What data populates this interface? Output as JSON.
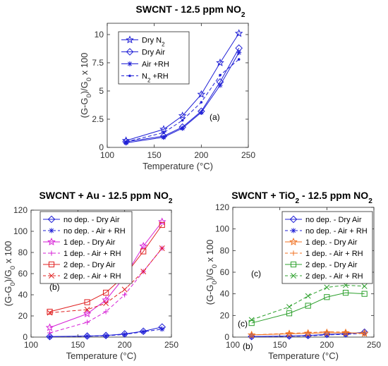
{
  "chart_data": [
    {
      "id": "a",
      "type": "line",
      "title": "SWCNT - 12.5 ppm NO",
      "title_sub": "2",
      "xlabel": "Temperature (°C)",
      "ylabel_parts": [
        "(G-G",
        "0",
        ")/G",
        "0",
        " x 100"
      ],
      "xlim": [
        100,
        250
      ],
      "ylim": [
        0,
        11
      ],
      "xticks": [
        100,
        150,
        200,
        250
      ],
      "yticks": [
        0,
        2.5,
        5,
        7.5,
        10
      ],
      "ytick_labels": [
        "0",
        "2.5",
        "5",
        "7.5",
        "10"
      ],
      "legend_position": "top-left",
      "annotations": [
        "(a)"
      ],
      "x": [
        120,
        160,
        180,
        200,
        220,
        240
      ],
      "series": [
        {
          "name": "Dry N",
          "name_sub": "2",
          "name_suffix": "",
          "color": "#1f1fd6",
          "marker": "star",
          "dash": "solid",
          "values": [
            0.6,
            1.6,
            2.8,
            4.7,
            7.5,
            10.1
          ]
        },
        {
          "name": "Dry Air",
          "color": "#1f1fd6",
          "marker": "diamond",
          "dash": "solid",
          "values": [
            0.5,
            1.0,
            1.8,
            3.2,
            5.8,
            8.8
          ]
        },
        {
          "name": "Air +RH",
          "color": "#1f1fd6",
          "marker": "asterisk",
          "dash": "solid",
          "values": [
            0.4,
            0.9,
            1.7,
            3.1,
            5.5,
            8.4
          ]
        },
        {
          "name": "N",
          "name_sub": "2",
          "name_suffix": " +RH",
          "color": "#1f1fd6",
          "marker": "dot",
          "dash": "dashed",
          "values": [
            0.5,
            1.3,
            2.4,
            4.0,
            6.4,
            7.8
          ]
        }
      ]
    },
    {
      "id": "b",
      "type": "line",
      "title": "SWCNT + Au - 12.5 ppm NO",
      "title_sub": "2",
      "xlabel": "Temperature (°C)",
      "ylabel_parts": [
        "(G-G",
        "0",
        ")/G",
        "0",
        " x 100"
      ],
      "xlim": [
        100,
        250
      ],
      "ylim": [
        0,
        120
      ],
      "xticks": [
        100,
        150,
        200,
        250
      ],
      "yticks": [
        0,
        20,
        40,
        60,
        80,
        100,
        120
      ],
      "ytick_labels": [
        "0",
        "20",
        "40",
        "60",
        "80",
        "100",
        "120"
      ],
      "legend_position": "top-left",
      "annotations": [
        "(b)"
      ],
      "x": [
        120,
        160,
        180,
        200,
        220,
        240
      ],
      "series": [
        {
          "name": "no dep. - Dry Air",
          "color": "#1f1fd6",
          "marker": "diamond",
          "dash": "solid",
          "values": [
            0.5,
            1.0,
            1.5,
            3.0,
            5.5,
            9.5
          ]
        },
        {
          "name": "no dep. - Air + RH",
          "color": "#1f1fd6",
          "marker": "asterisk",
          "dash": "dashed",
          "values": [
            0.3,
            0.8,
            1.2,
            2.5,
            5.0,
            7.5
          ]
        },
        {
          "name": "1 dep. - Dry  Air",
          "color": "#d61fd6",
          "marker": "star",
          "dash": "solid",
          "values": [
            9,
            22,
            35,
            57,
            86,
            109
          ]
        },
        {
          "name": "1 dep. - Air + RH",
          "color": "#d61fd6",
          "marker": "plus",
          "dash": "dashed",
          "values": [
            4,
            14,
            24,
            40,
            62,
            84
          ]
        },
        {
          "name": "2 dep. - Dry Air",
          "color": "#e02020",
          "marker": "square",
          "dash": "solid",
          "values": [
            24,
            33,
            42,
            58,
            81,
            106
          ]
        },
        {
          "name": "2 dep. - Air + RH",
          "color": "#e02020",
          "marker": "cross",
          "dash": "dashed",
          "values": [
            23,
            26,
            32,
            45,
            62,
            84
          ]
        }
      ]
    },
    {
      "id": "c",
      "type": "line",
      "title": "SWCNT + TiO",
      "title_sub": "2",
      "title_suffix": " - 12.5 ppm NO",
      "title_sub2": "2",
      "xlabel": "Temperature (°C)",
      "ylabel_parts": [
        "(G-G",
        "0",
        ")/G",
        "0",
        " x 100"
      ],
      "xlim": [
        100,
        250
      ],
      "ylim": [
        0,
        120
      ],
      "xticks": [
        100,
        150,
        200,
        250
      ],
      "yticks": [
        0,
        20,
        40,
        60,
        80,
        100,
        120
      ],
      "ytick_labels": [
        "0",
        "20",
        "40",
        "60",
        "80",
        "100",
        "120"
      ],
      "legend_position": "top-right",
      "annotations": [
        "(c)",
        "(c)",
        "(b)"
      ],
      "x": [
        120,
        160,
        180,
        200,
        220,
        240
      ],
      "series": [
        {
          "name": "no dep. - Dry Air",
          "color": "#1f1fd6",
          "marker": "diamond",
          "dash": "solid",
          "values": [
            0.5,
            1.0,
            1.5,
            2.5,
            3.0,
            4.5
          ]
        },
        {
          "name": "no dep. - Air + RH",
          "color": "#1f1fd6",
          "marker": "asterisk",
          "dash": "dashed",
          "values": [
            0.3,
            0.8,
            1.0,
            2.0,
            2.5,
            3.5
          ]
        },
        {
          "name": "1 dep. - Dry Air",
          "color": "#f07020",
          "marker": "star",
          "dash": "solid",
          "values": [
            2,
            3,
            3.5,
            4,
            4,
            3.5
          ]
        },
        {
          "name": "1 dep. - Air + RH",
          "color": "#f07020",
          "marker": "plus",
          "dash": "dashed",
          "values": [
            2,
            3.5,
            4,
            5,
            4.5,
            3
          ]
        },
        {
          "name": "2 dep. - Dry Air",
          "color": "#2ca02c",
          "marker": "square",
          "dash": "solid",
          "values": [
            13,
            22,
            29,
            37,
            41,
            40
          ]
        },
        {
          "name": "2 dep. - Air + RH",
          "color": "#2ca02c",
          "marker": "cross",
          "dash": "dashed",
          "values": [
            16,
            28,
            38,
            46,
            48,
            47
          ]
        }
      ]
    }
  ]
}
